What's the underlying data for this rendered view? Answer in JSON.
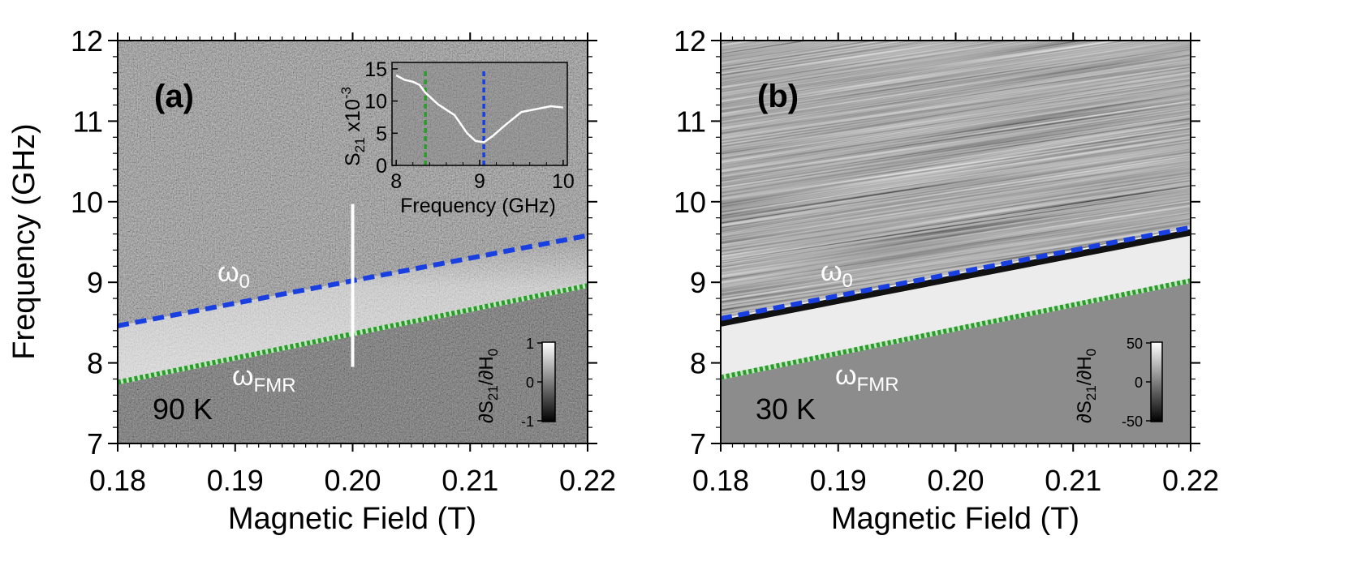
{
  "chart_data": [
    {
      "panel": "(a)",
      "type": "heatmap",
      "temperature": "90 K",
      "xlabel": "Magnetic Field (T)",
      "ylabel": "Frequency (GHz)",
      "xlim": [
        0.18,
        0.22
      ],
      "ylim": [
        7,
        12
      ],
      "xticks": [
        "0.18",
        "0.19",
        "0.20",
        "0.21",
        "0.22"
      ],
      "yticks": [
        "7",
        "8",
        "9",
        "10",
        "11",
        "12"
      ],
      "series": [
        {
          "name": "ω0",
          "label_main": "ω",
          "label_sub": "0",
          "style": "dashed",
          "color": "#1a3fe0",
          "x": [
            0.18,
            0.22
          ],
          "y": [
            8.46,
            9.58
          ]
        },
        {
          "name": "ωFMR",
          "label_main": "ω",
          "label_sub": "FMR",
          "style": "dotted",
          "color": "#2e9a2e",
          "x": [
            0.18,
            0.22
          ],
          "y": [
            7.76,
            8.96
          ]
        }
      ],
      "cut_line": {
        "x": 0.2,
        "y_range": [
          7.95,
          9.97
        ],
        "color": "#ffffff"
      },
      "colorbar": {
        "title_main": "∂S",
        "title_sub": "21",
        "title_mid": "/∂H",
        "title_sub2": "0",
        "ticks": [
          "1",
          "0",
          "-1"
        ],
        "range": [
          -1,
          1
        ]
      },
      "inset": {
        "type": "line",
        "xlabel": "Frequency (GHz)",
        "ylabel_main": "S",
        "ylabel_sub": "21",
        "ylabel_mid": " x10",
        "ylabel_sup": "-3",
        "xlim": [
          7.95,
          10.05
        ],
        "ylim": [
          0,
          16
        ],
        "xticks": [
          "8",
          "9",
          "10"
        ],
        "yticks": [
          "0",
          "5",
          "10",
          "15"
        ],
        "x": [
          8.0,
          8.1,
          8.2,
          8.28,
          8.35,
          8.5,
          8.7,
          8.85,
          8.95,
          9.05,
          9.15,
          9.3,
          9.5,
          9.7,
          9.85,
          10.0
        ],
        "y": [
          14.0,
          13.3,
          13.0,
          12.5,
          11.3,
          9.5,
          7.8,
          5.0,
          3.8,
          3.6,
          4.5,
          6.2,
          8.3,
          8.8,
          9.2,
          9.0
        ],
        "markers": [
          {
            "x": 8.35,
            "color": "#2e9a2e"
          },
          {
            "x": 9.05,
            "color": "#1a3fe0"
          }
        ]
      }
    },
    {
      "panel": "(b)",
      "type": "heatmap",
      "temperature": "30 K",
      "xlabel": "Magnetic Field (T)",
      "xlim": [
        0.18,
        0.22
      ],
      "ylim": [
        7,
        12
      ],
      "xticks": [
        "0.18",
        "0.19",
        "0.20",
        "0.21",
        "0.22"
      ],
      "yticks": [
        "7",
        "8",
        "9",
        "10",
        "11",
        "12"
      ],
      "series": [
        {
          "name": "ω0",
          "label_main": "ω",
          "label_sub": "0",
          "style": "dashed",
          "color": "#1a3fe0",
          "x": [
            0.18,
            0.22
          ],
          "y": [
            8.55,
            9.68
          ]
        },
        {
          "name": "ωFMR",
          "label_main": "ω",
          "label_sub": "FMR",
          "style": "dotted",
          "color": "#2e9a2e",
          "x": [
            0.18,
            0.22
          ],
          "y": [
            7.82,
            9.02
          ]
        }
      ],
      "colorbar": {
        "title_main": "∂S",
        "title_sub": "21",
        "title_mid": "/∂H",
        "title_sub2": "0",
        "ticks": [
          "50",
          "0",
          "-50"
        ],
        "range": [
          -50,
          50
        ]
      }
    }
  ]
}
